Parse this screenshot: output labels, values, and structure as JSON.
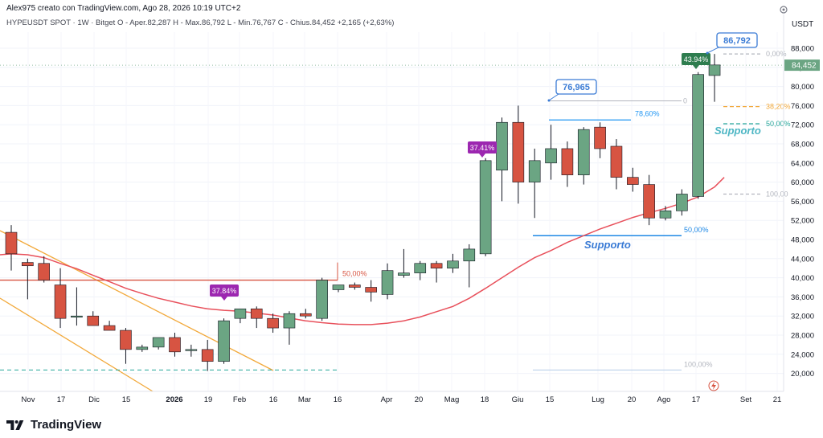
{
  "header": {
    "author_line": "Alex975 creato con TradingView.com, Ago 28, 2026 10:19 UTC+2",
    "symbol_line": "HYPEUSDT SPOT · 1W · Bitget  O - Aper.82,287  H - Max.86,792  L - Min.76,767  C - Chius.84,452  +2,165 (+2,63%)"
  },
  "price_axis": {
    "currency": "USDT",
    "last_price_label": "84,452",
    "tick_labels": [
      "88,000",
      "84,000",
      "80,000",
      "76,000",
      "72,000",
      "68,000",
      "64,000",
      "60,000",
      "56,000",
      "52,000",
      "48,000",
      "44,000",
      "40,000",
      "36,000",
      "32,000",
      "28,000",
      "24,000",
      "20,000"
    ]
  },
  "time_axis": {
    "labels": [
      "Nov",
      "17",
      "Dic",
      "15",
      "2026",
      "19",
      "Feb",
      "16",
      "Mar",
      "16",
      "Apr",
      "20",
      "Mag",
      "18",
      "Giu",
      "15",
      "Lug",
      "20",
      "Ago",
      "17",
      "Set",
      "21"
    ]
  },
  "colors": {
    "up": "#6ba583",
    "down": "#d75442",
    "ma": "#e8505b",
    "channel": "#f2a93b",
    "fib_blue": "#1e88e5",
    "label_blue": "#3a7bd5",
    "purple": "#9c27b0",
    "dark_green": "#2e7d4f"
  },
  "annotations": {
    "high_callout": "86,792",
    "prior_high_callout": "76,965",
    "badge_top": "43.94%",
    "badge_mid": "37.41%",
    "badge_left": "37.84%",
    "supporto_upper": "Supporto",
    "supporto_lower": "Supporto",
    "fib_labels": {
      "f0_top": "0,00%",
      "f38": "38,20%",
      "f50_upper": "50,00%",
      "f786": "78,60%",
      "f0_mid": "0",
      "f100_upper": "100,00",
      "f50_lower": "50,00%",
      "f100_lower": "100,00%",
      "f50_left": "50,00%"
    }
  },
  "footer": {
    "brand": "TradingView"
  },
  "chart_data": {
    "type": "candlestick",
    "symbol": "HYPEUSDT SPOT",
    "interval": "1W",
    "exchange": "Bitget",
    "ohlc_last": {
      "open": 82.287,
      "high": 86.792,
      "low": 76.767,
      "close": 84.452,
      "change": 2.165,
      "change_pct": 2.63
    },
    "ylim": [
      18,
      92
    ],
    "ylabel": "USDT",
    "candles": [
      {
        "o": 49.5,
        "h": 51.0,
        "l": 41.5,
        "c": 45.0
      },
      {
        "o": 43.2,
        "h": 44.0,
        "l": 35.5,
        "c": 42.5
      },
      {
        "o": 43.0,
        "h": 44.5,
        "l": 39.0,
        "c": 39.5
      },
      {
        "o": 38.5,
        "h": 42.0,
        "l": 29.5,
        "c": 31.5
      },
      {
        "o": 32.0,
        "h": 38.0,
        "l": 30.0,
        "c": 32.0
      },
      {
        "o": 32.0,
        "h": 33.0,
        "l": 30.0,
        "c": 30.0
      },
      {
        "o": 30.0,
        "h": 31.0,
        "l": 29.0,
        "c": 29.0
      },
      {
        "o": 29.0,
        "h": 29.5,
        "l": 22.0,
        "c": 25.0
      },
      {
        "o": 25.0,
        "h": 26.0,
        "l": 24.5,
        "c": 25.5
      },
      {
        "o": 25.5,
        "h": 27.5,
        "l": 25.0,
        "c": 27.5
      },
      {
        "o": 27.5,
        "h": 28.5,
        "l": 23.5,
        "c": 24.5
      },
      {
        "o": 25.0,
        "h": 26.0,
        "l": 23.5,
        "c": 25.0
      },
      {
        "o": 25.0,
        "h": 27.0,
        "l": 20.5,
        "c": 22.5
      },
      {
        "o": 22.5,
        "h": 31.5,
        "l": 22.0,
        "c": 31.0
      },
      {
        "o": 31.5,
        "h": 33.5,
        "l": 30.5,
        "c": 33.5
      },
      {
        "o": 33.5,
        "h": 34.0,
        "l": 29.5,
        "c": 31.5
      },
      {
        "o": 31.5,
        "h": 32.5,
        "l": 28.5,
        "c": 29.5
      },
      {
        "o": 29.5,
        "h": 33.0,
        "l": 26.0,
        "c": 32.5
      },
      {
        "o": 32.5,
        "h": 33.5,
        "l": 31.5,
        "c": 32.0
      },
      {
        "o": 31.5,
        "h": 40.0,
        "l": 31.0,
        "c": 39.5
      },
      {
        "o": 37.5,
        "h": 38.0,
        "l": 37.0,
        "c": 38.5
      },
      {
        "o": 38.5,
        "h": 39.0,
        "l": 37.5,
        "c": 38.0
      },
      {
        "o": 38.0,
        "h": 39.5,
        "l": 35.0,
        "c": 37.0
      },
      {
        "o": 36.5,
        "h": 43.0,
        "l": 35.5,
        "c": 41.5
      },
      {
        "o": 40.5,
        "h": 46.0,
        "l": 40.0,
        "c": 41.0
      },
      {
        "o": 41.0,
        "h": 43.5,
        "l": 39.5,
        "c": 43.0
      },
      {
        "o": 43.0,
        "h": 43.5,
        "l": 39.0,
        "c": 42.0
      },
      {
        "o": 42.0,
        "h": 45.0,
        "l": 41.0,
        "c": 43.5
      },
      {
        "o": 43.5,
        "h": 47.0,
        "l": 38.0,
        "c": 46.0
      },
      {
        "o": 45.0,
        "h": 65.0,
        "l": 44.5,
        "c": 64.5
      },
      {
        "o": 62.5,
        "h": 73.5,
        "l": 56.0,
        "c": 72.5
      },
      {
        "o": 72.5,
        "h": 76.0,
        "l": 55.5,
        "c": 60.0
      },
      {
        "o": 60.0,
        "h": 67.0,
        "l": 52.5,
        "c": 64.5
      },
      {
        "o": 64.0,
        "h": 72.0,
        "l": 60.5,
        "c": 67.0
      },
      {
        "o": 67.0,
        "h": 68.5,
        "l": 59.0,
        "c": 61.5
      },
      {
        "o": 61.5,
        "h": 71.5,
        "l": 59.5,
        "c": 71.0
      },
      {
        "o": 71.5,
        "h": 72.5,
        "l": 65.0,
        "c": 67.0
      },
      {
        "o": 67.5,
        "h": 69.0,
        "l": 58.5,
        "c": 61.0
      },
      {
        "o": 61.0,
        "h": 63.0,
        "l": 58.0,
        "c": 59.5
      },
      {
        "o": 59.5,
        "h": 61.5,
        "l": 51.0,
        "c": 52.5
      },
      {
        "o": 52.5,
        "h": 55.0,
        "l": 52.0,
        "c": 54.0
      },
      {
        "o": 54.0,
        "h": 58.5,
        "l": 53.0,
        "c": 57.5
      },
      {
        "o": 57.0,
        "h": 83.0,
        "l": 56.5,
        "c": 82.5
      },
      {
        "o": 82.3,
        "h": 86.8,
        "l": 76.8,
        "c": 84.5
      }
    ],
    "moving_average": [
      45.0,
      44.8,
      44.2,
      43.0,
      41.9,
      40.5,
      39.2,
      37.8,
      36.7,
      35.7,
      34.9,
      34.1,
      33.5,
      33.2,
      33.0,
      32.6,
      32.2,
      31.6,
      31.0,
      30.6,
      30.3,
      30.2,
      30.2,
      30.5,
      31.0,
      31.8,
      32.9,
      34.0,
      35.7,
      37.8,
      40.0,
      42.2,
      44.2,
      45.7,
      47.4,
      48.8,
      50.2,
      51.4,
      52.6,
      53.6,
      54.5,
      55.6,
      56.9,
      59.0
    ],
    "fib_levels_right": [
      {
        "label": "0,00%",
        "price": 86.8
      },
      {
        "label": "38,20%",
        "price": 75.8
      },
      {
        "label": "50,00%",
        "price": 72.2
      },
      {
        "label": "100,00",
        "price": 57.5
      }
    ],
    "fib_levels_mid": [
      {
        "label": "0",
        "price": 77.0
      },
      {
        "label": "78,60%",
        "price": 73.0
      },
      {
        "label": "50,00%",
        "price": 48.8
      },
      {
        "label": "100,00%",
        "price": 20.7
      }
    ],
    "horizontal_levels": [
      {
        "label": "50,00%",
        "price": 39.5
      },
      {
        "label": "",
        "price": 20.7
      }
    ]
  }
}
